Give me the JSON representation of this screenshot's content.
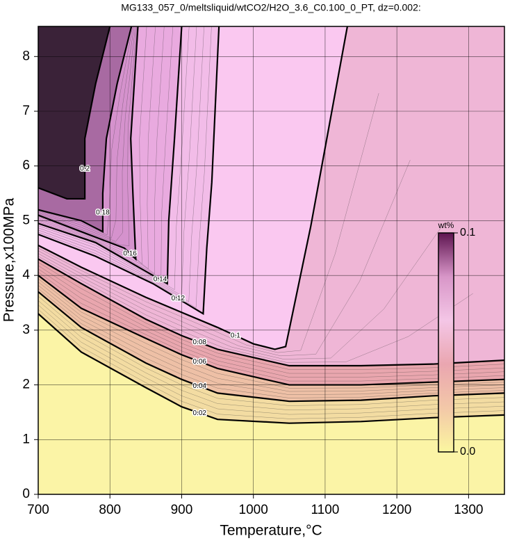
{
  "chart_data": {
    "type": "contour",
    "title": "MG133_057_0/meltsliquid/wtCO2/H2O_3.6_C0.100_0_PT, dz=0.002:",
    "x_label": "Temperature,°C",
    "y_label": "Pressure,x100MPa",
    "xlim": [
      700,
      1350
    ],
    "xticks": [
      700,
      800,
      900,
      1000,
      1100,
      1200,
      1300
    ],
    "ylim": [
      0,
      8.55
    ],
    "yticks": [
      0,
      1,
      2,
      3,
      4,
      5,
      6,
      7,
      8
    ],
    "grid": true,
    "base_fill": "#fbf4a6",
    "contours": [
      {
        "level": 0.02,
        "fill": "#f3dca2",
        "x": [
          700,
          760,
          850,
          900,
          950,
          1050,
          1150,
          1250,
          1350
        ],
        "y": [
          3.3,
          2.6,
          1.95,
          1.6,
          1.37,
          1.3,
          1.33,
          1.4,
          1.45
        ]
      },
      {
        "level": 0.04,
        "fill": "#eec0a6",
        "x": [
          700,
          760,
          850,
          900,
          950,
          1050,
          1150,
          1250,
          1350
        ],
        "y": [
          3.7,
          3.05,
          2.4,
          2.1,
          1.85,
          1.7,
          1.72,
          1.8,
          1.85
        ]
      },
      {
        "level": 0.06,
        "fill": "#e9a6ae",
        "x": [
          700,
          760,
          850,
          900,
          950,
          1050,
          1150,
          1250,
          1350
        ],
        "y": [
          4.0,
          3.4,
          2.85,
          2.55,
          2.3,
          2.0,
          2.0,
          2.05,
          2.1
        ]
      },
      {
        "level": 0.08,
        "fill": "#efb6d6",
        "x": [
          700,
          760,
          850,
          900,
          950,
          1050,
          1150,
          1250,
          1350
        ],
        "y": [
          4.3,
          3.85,
          3.2,
          2.9,
          2.65,
          2.35,
          2.35,
          2.38,
          2.45
        ]
      },
      {
        "level": 0.1,
        "fill": "#fac8f0",
        "x": [
          700,
          760,
          850,
          950,
          1000,
          1030,
          1045,
          1080,
          1131
        ],
        "y": [
          4.55,
          4.15,
          3.6,
          3.05,
          2.75,
          2.65,
          2.7,
          4.9,
          8.55
        ]
      },
      {
        "level": 0.12,
        "fill": "#f2bce8",
        "x": [
          700,
          780,
          860,
          930,
          935,
          942,
          952
        ],
        "y": [
          4.75,
          4.35,
          3.85,
          3.3,
          4.5,
          5.7,
          8.55
        ]
      },
      {
        "level": 0.14,
        "fill": "#e9aadf",
        "x": [
          700,
          780,
          860,
          880,
          882,
          890,
          900
        ],
        "y": [
          4.95,
          4.6,
          4.0,
          3.85,
          5.0,
          6.5,
          8.55
        ]
      },
      {
        "level": 0.16,
        "fill": "#d592cd",
        "x": [
          700,
          760,
          820,
          836,
          832,
          829,
          839
        ],
        "y": [
          5.1,
          4.8,
          4.5,
          4.3,
          5.5,
          6.5,
          8.55
        ]
      },
      {
        "level": 0.18,
        "fill": "#a86aa2",
        "x": [
          700,
          760,
          790,
          790,
          795,
          810,
          830
        ],
        "y": [
          5.2,
          5.0,
          4.8,
          5.5,
          6.5,
          7.5,
          8.55
        ]
      },
      {
        "level": 0.2,
        "fill": "#3a2238",
        "x": [
          700,
          740,
          765,
          765,
          780,
          800
        ],
        "y": [
          5.6,
          5.4,
          5.4,
          6.5,
          7.5,
          8.55
        ]
      }
    ],
    "colorbar": {
      "title": "wt%",
      "colors": [
        "#fbf6a0",
        "#f3c8a8",
        "#eaa6b0",
        "#f4c6e6",
        "#d896c8",
        "#5e1450"
      ],
      "lim": [
        0,
        0.1
      ],
      "ticks": [
        {
          "value": 0,
          "label": "0.0"
        },
        0.1
      ]
    }
  }
}
